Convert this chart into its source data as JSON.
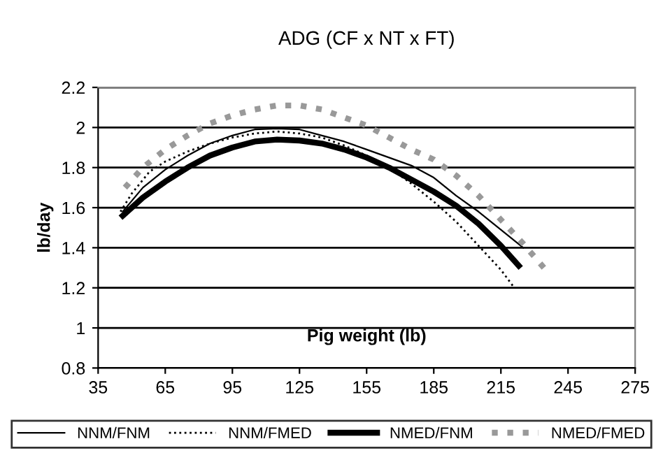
{
  "chart_data": {
    "type": "line",
    "title": "ADG (CF x NT x FT)",
    "xlabel": "Pig weight (lb)",
    "ylabel": "lb/day",
    "xlim": [
      35,
      275
    ],
    "xticks": [
      35,
      65,
      95,
      125,
      155,
      185,
      215,
      245,
      275
    ],
    "ylim": [
      0.8,
      2.2
    ],
    "yticks": [
      0.8,
      1,
      1.2,
      1.4,
      1.6,
      1.8,
      2,
      2.2
    ],
    "grid": "y",
    "legend": "bottom",
    "marker": "none",
    "series": [
      {
        "name": "NNM/FNM",
        "color": "#000000",
        "line_style": "solid",
        "x": [
          46,
          55,
          65,
          75,
          85,
          95,
          105,
          115,
          125,
          135,
          145,
          155,
          165,
          175,
          185,
          195,
          205,
          215,
          225
        ],
        "values": [
          1.58,
          1.7,
          1.79,
          1.86,
          1.92,
          1.96,
          1.99,
          1.995,
          1.99,
          1.96,
          1.93,
          1.89,
          1.85,
          1.81,
          1.75,
          1.66,
          1.58,
          1.49,
          1.4
        ]
      },
      {
        "name": "NNM/FMED",
        "color": "#000000",
        "line_style": "dotted",
        "x": [
          45,
          50,
          58,
          65,
          75,
          85,
          95,
          105,
          115,
          125,
          135,
          145,
          155,
          165,
          175,
          185,
          195,
          205,
          215,
          221
        ],
        "values": [
          1.58,
          1.67,
          1.78,
          1.83,
          1.88,
          1.92,
          1.95,
          1.97,
          1.98,
          1.97,
          1.95,
          1.91,
          1.86,
          1.8,
          1.72,
          1.63,
          1.53,
          1.41,
          1.29,
          1.2
        ]
      },
      {
        "name": "NMED/FNM",
        "color": "#000000",
        "line_style": "solid",
        "x": [
          46,
          55,
          65,
          75,
          85,
          95,
          105,
          115,
          125,
          135,
          145,
          155,
          165,
          175,
          185,
          195,
          205,
          215,
          223
        ],
        "values": [
          1.56,
          1.65,
          1.73,
          1.8,
          1.86,
          1.9,
          1.93,
          1.94,
          1.935,
          1.92,
          1.89,
          1.85,
          1.8,
          1.74,
          1.68,
          1.61,
          1.52,
          1.41,
          1.31
        ]
      },
      {
        "name": "NMED/FMED",
        "color": "#999999",
        "line_style": "dotted",
        "x": [
          47,
          55,
          65,
          75,
          85,
          95,
          105,
          115,
          125,
          135,
          145,
          155,
          165,
          175,
          185,
          195,
          205,
          215,
          225,
          235
        ],
        "values": [
          1.7,
          1.8,
          1.89,
          1.96,
          2.02,
          2.06,
          2.09,
          2.11,
          2.11,
          2.09,
          2.05,
          2.01,
          1.95,
          1.89,
          1.84,
          1.76,
          1.66,
          1.54,
          1.42,
          1.29
        ]
      }
    ]
  }
}
